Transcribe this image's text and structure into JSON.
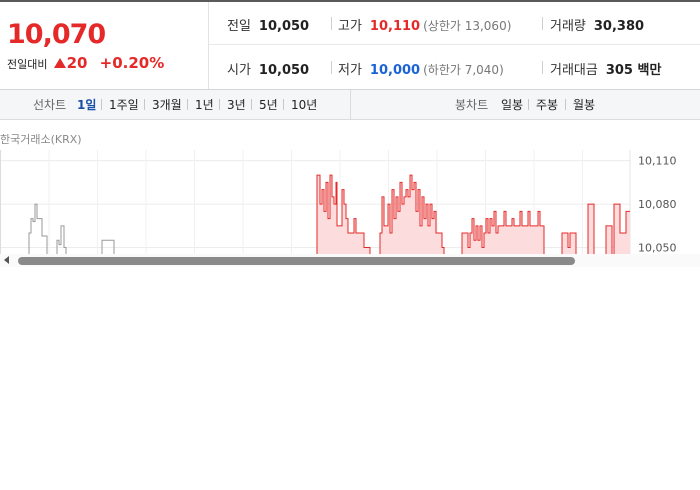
{
  "quote": {
    "price": "10,070",
    "change_label": "전일대비",
    "change_value": "20",
    "change_pct": "+0.20%"
  },
  "stats": {
    "prev_close_label": "전일",
    "prev_close": "10,050",
    "high_label": "고가",
    "high": "10,110",
    "upper_limit": "(상한가 13,060)",
    "volume_label": "거래량",
    "volume": "30,380",
    "open_label": "시가",
    "open": "10,050",
    "low_label": "저가",
    "low": "10,000",
    "lower_limit": "(하한가 7,040)",
    "trade_value_label": "거래대금",
    "trade_value": "305 백만"
  },
  "tabs": {
    "line_head": "선차트",
    "line": [
      "1일",
      "1주일",
      "3개월",
      "1년",
      "3년",
      "5년",
      "10년"
    ],
    "active_line": "1일",
    "candle_head": "봉차트",
    "candle": [
      "일봉",
      "주봉",
      "월봉"
    ]
  },
  "source": "한국거래소(KRX)",
  "colors": {
    "up": "#e52929",
    "down": "#1a62d6",
    "area_fill": "#fcdcdc"
  },
  "chart_data": {
    "type": "area",
    "y_ticks": [
      "10,110",
      "10,080",
      "10,050"
    ],
    "ylim": [
      10040,
      10116
    ],
    "grid": true,
    "pre_market": [
      [
        0,
        10045
      ],
      [
        26,
        10045
      ],
      [
        29,
        10060
      ],
      [
        31,
        10070
      ],
      [
        33,
        10068
      ],
      [
        35,
        10080
      ],
      [
        37,
        10070
      ],
      [
        40,
        10070
      ],
      [
        42,
        10058
      ],
      [
        45,
        10058
      ],
      [
        47,
        10045
      ],
      [
        55,
        10045
      ],
      [
        57,
        10055
      ],
      [
        59,
        10052
      ],
      [
        61,
        10065
      ],
      [
        64,
        10050
      ],
      [
        66,
        10045
      ],
      [
        100,
        10045
      ],
      [
        102,
        10055
      ],
      [
        112,
        10055
      ],
      [
        114,
        10045
      ],
      [
        170,
        10045
      ]
    ],
    "session": [
      [
        260,
        10045
      ],
      [
        300,
        10045
      ],
      [
        316,
        10045
      ],
      [
        317,
        10100
      ],
      [
        319,
        10100
      ],
      [
        320,
        10080
      ],
      [
        322,
        10090
      ],
      [
        324,
        10075
      ],
      [
        326,
        10095
      ],
      [
        328,
        10070
      ],
      [
        330,
        10100
      ],
      [
        332,
        10085
      ],
      [
        334,
        10080
      ],
      [
        336,
        10095
      ],
      [
        337,
        10065
      ],
      [
        340,
        10065
      ],
      [
        342,
        10090
      ],
      [
        344,
        10080
      ],
      [
        346,
        10070
      ],
      [
        348,
        10060
      ],
      [
        352,
        10060
      ],
      [
        354,
        10070
      ],
      [
        356,
        10060
      ],
      [
        362,
        10060
      ],
      [
        364,
        10050
      ],
      [
        370,
        10045
      ],
      [
        378,
        10045
      ],
      [
        380,
        10060
      ],
      [
        382,
        10085
      ],
      [
        384,
        10065
      ],
      [
        386,
        10065
      ],
      [
        388,
        10080
      ],
      [
        390,
        10060
      ],
      [
        392,
        10090
      ],
      [
        394,
        10070
      ],
      [
        396,
        10085
      ],
      [
        398,
        10075
      ],
      [
        400,
        10095
      ],
      [
        402,
        10080
      ],
      [
        404,
        10085
      ],
      [
        406,
        10090
      ],
      [
        408,
        10085
      ],
      [
        410,
        10100
      ],
      [
        412,
        10090
      ],
      [
        414,
        10095
      ],
      [
        416,
        10075
      ],
      [
        418,
        10090
      ],
      [
        420,
        10065
      ],
      [
        422,
        10085
      ],
      [
        424,
        10070
      ],
      [
        426,
        10080
      ],
      [
        428,
        10065
      ],
      [
        430,
        10080
      ],
      [
        432,
        10070
      ],
      [
        434,
        10075
      ],
      [
        436,
        10060
      ],
      [
        440,
        10060
      ],
      [
        442,
        10050
      ],
      [
        444,
        10045
      ],
      [
        460,
        10045
      ],
      [
        462,
        10060
      ],
      [
        466,
        10060
      ],
      [
        468,
        10050
      ],
      [
        470,
        10060
      ],
      [
        472,
        10070
      ],
      [
        474,
        10055
      ],
      [
        476,
        10065
      ],
      [
        478,
        10055
      ],
      [
        480,
        10065
      ],
      [
        482,
        10050
      ],
      [
        484,
        10060
      ],
      [
        486,
        10070
      ],
      [
        488,
        10060
      ],
      [
        490,
        10070
      ],
      [
        492,
        10065
      ],
      [
        494,
        10075
      ],
      [
        496,
        10060
      ],
      [
        498,
        10065
      ],
      [
        502,
        10065
      ],
      [
        504,
        10075
      ],
      [
        506,
        10065
      ],
      [
        510,
        10065
      ],
      [
        512,
        10070
      ],
      [
        514,
        10065
      ],
      [
        518,
        10065
      ],
      [
        520,
        10075
      ],
      [
        522,
        10065
      ],
      [
        526,
        10065
      ],
      [
        528,
        10075
      ],
      [
        530,
        10065
      ],
      [
        536,
        10065
      ],
      [
        538,
        10075
      ],
      [
        540,
        10065
      ],
      [
        542,
        10065
      ],
      [
        544,
        10045
      ],
      [
        560,
        10045
      ],
      [
        562,
        10060
      ],
      [
        566,
        10060
      ],
      [
        568,
        10050
      ],
      [
        570,
        10060
      ],
      [
        574,
        10060
      ],
      [
        576,
        10045
      ],
      [
        586,
        10045
      ],
      [
        588,
        10080
      ],
      [
        592,
        10080
      ],
      [
        594,
        10045
      ],
      [
        604,
        10045
      ],
      [
        606,
        10065
      ],
      [
        610,
        10065
      ],
      [
        612,
        10045
      ],
      [
        614,
        10080
      ],
      [
        618,
        10080
      ],
      [
        620,
        10060
      ],
      [
        624,
        10060
      ],
      [
        626,
        10075
      ],
      [
        630,
        10075
      ]
    ]
  }
}
